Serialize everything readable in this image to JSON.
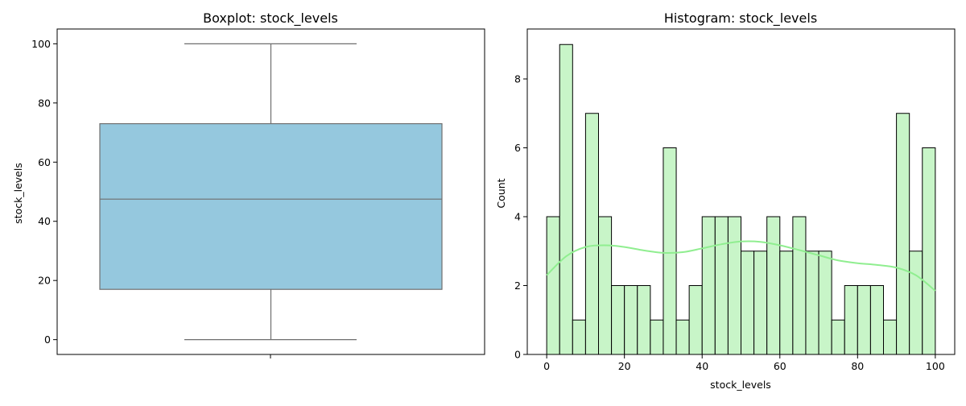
{
  "chart_data": [
    {
      "type": "boxplot",
      "title": "Boxplot: stock_levels",
      "xlabel": "",
      "ylabel": "stock_levels",
      "ylim": [
        -5,
        105
      ],
      "yticks": [
        0,
        20,
        40,
        60,
        80,
        100
      ],
      "yticklabels": [
        "0",
        "20",
        "40",
        "60",
        "80",
        "100"
      ],
      "stats": {
        "min": 0,
        "q1": 17,
        "median": 47.5,
        "q3": 73,
        "max": 100
      },
      "box_color": "#95c8de",
      "line_color": "#6e6e6e",
      "grid": false
    },
    {
      "type": "histogram",
      "title": "Histogram: stock_levels",
      "xlabel": "stock_levels",
      "ylabel": "Count",
      "xlim": [
        -5,
        105
      ],
      "ylim": [
        0,
        9.45
      ],
      "xticks": [
        0,
        20,
        40,
        60,
        80,
        100
      ],
      "xticklabels": [
        "0",
        "20",
        "40",
        "60",
        "80",
        "100"
      ],
      "yticks": [
        0,
        2,
        4,
        6,
        8
      ],
      "yticklabels": [
        "0",
        "2",
        "4",
        "6",
        "8"
      ],
      "bin_start": 0,
      "bin_end": 100,
      "counts": [
        4,
        9,
        1,
        7,
        4,
        2,
        2,
        2,
        1,
        6,
        1,
        2,
        4,
        4,
        4,
        3,
        3,
        4,
        3,
        4,
        3,
        3,
        1,
        2,
        2,
        2,
        1,
        7,
        3,
        6
      ],
      "kde": {
        "x": [
          0,
          5,
          10,
          15,
          20,
          25,
          30,
          35,
          40,
          45,
          50,
          55,
          60,
          65,
          70,
          75,
          80,
          85,
          90,
          95,
          100
        ],
        "y": [
          2.3,
          2.85,
          3.12,
          3.17,
          3.12,
          3.02,
          2.95,
          2.97,
          3.08,
          3.2,
          3.28,
          3.27,
          3.17,
          3.03,
          2.88,
          2.73,
          2.65,
          2.6,
          2.52,
          2.3,
          1.85
        ]
      },
      "bar_fill": "#c8f5c8",
      "bar_edge": "#000000",
      "kde_color": "#90ee90",
      "grid": false
    }
  ]
}
